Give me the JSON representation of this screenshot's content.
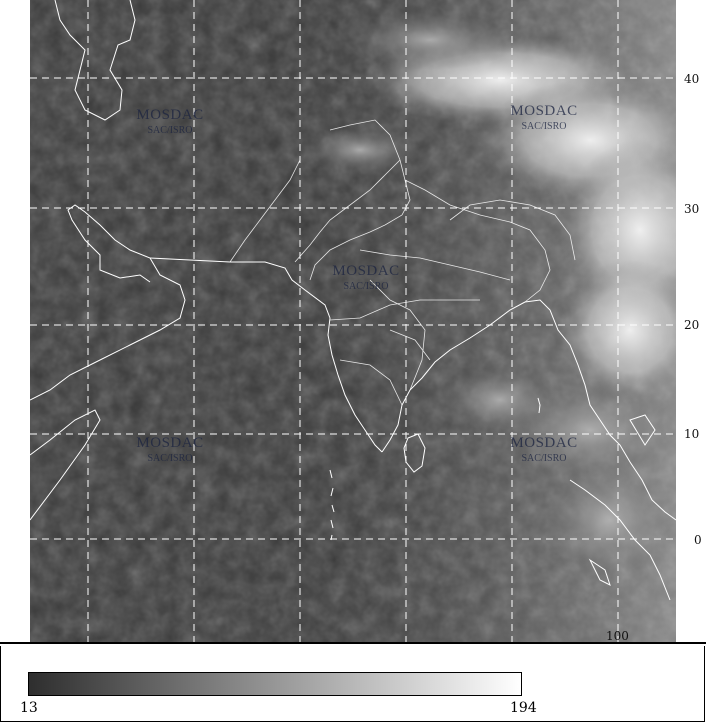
{
  "map": {
    "latitude_labels": [
      "40",
      "30",
      "20",
      "10",
      "0"
    ],
    "longitude_labels": [
      "100"
    ],
    "watermarks": [
      {
        "title": "MOSDAC",
        "subtitle": "SAC/ISRO"
      },
      {
        "title": "MOSDAC",
        "subtitle": "SAC/ISRO"
      },
      {
        "title": "MOSDAC",
        "subtitle": "SAC/ISRO"
      },
      {
        "title": "MOSDAC",
        "subtitle": "SAC/ISRO"
      },
      {
        "title": "MOSDAC",
        "subtitle": "SAC/ISRO"
      }
    ],
    "background_color": "#3c3c3c",
    "coastline_color": "#ffffff",
    "grid_color": "#ffffff"
  },
  "colorbar": {
    "min_label": "13",
    "max_label": "194",
    "gradient_start": "#2e2e2e",
    "gradient_end": "#ffffff"
  }
}
